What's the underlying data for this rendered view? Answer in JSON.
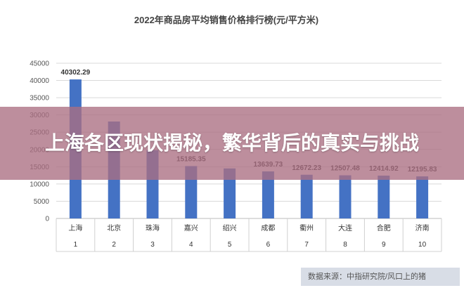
{
  "chart_data": {
    "type": "bar",
    "title": "2022年商品房平均销售价格排行榜(元/平方米)",
    "categories": [
      "上海",
      "北京",
      "珠海",
      "嘉兴",
      "绍兴",
      "成都",
      "衢州",
      "大连",
      "合肥",
      "济南"
    ],
    "ranks": [
      "1",
      "2",
      "3",
      "4",
      "5",
      "6",
      "7",
      "8",
      "9",
      "10"
    ],
    "values": [
      40302.29,
      28100,
      19800,
      15185.35,
      14500,
      13639.73,
      12672.23,
      12507.48,
      12414.92,
      12195.83
    ],
    "data_labels": [
      "40302.29",
      "",
      "",
      "15185.35",
      "",
      "13639.73",
      "12672.23",
      "12507.48",
      "12414.92",
      "12195.83"
    ],
    "yticks": [
      "0",
      "5000",
      "10000",
      "15000",
      "20000",
      "25000",
      "30000",
      "35000",
      "40000",
      "45000"
    ],
    "ylim": [
      0,
      45000
    ],
    "grid": true,
    "bar_color": "#4472c4"
  },
  "overlay": {
    "headline": "上海各区现状揭秘，繁华背后的真实与挑战"
  },
  "source": {
    "text": "数据来源：中指研究院/风口上的猪"
  }
}
